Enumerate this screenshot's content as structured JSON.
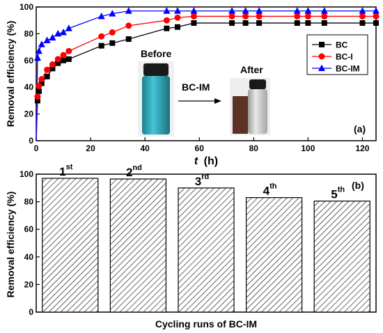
{
  "chart_data": [
    {
      "type": "line",
      "panel_label": "(a)",
      "xlabel": "t",
      "xlabel_unit": "(h)",
      "ylabel": "Removal efficiency (%)",
      "xlim": [
        0,
        125
      ],
      "ylim": [
        0,
        100
      ],
      "xticks": [
        0,
        20,
        40,
        60,
        80,
        100,
        120
      ],
      "yticks": [
        0,
        20,
        40,
        60,
        80,
        100
      ],
      "legend_position": "right",
      "series": [
        {
          "name": "BC",
          "color": "#000000",
          "marker": "square",
          "x": [
            0,
            0.5,
            1,
            2,
            4,
            6,
            8,
            10,
            12,
            24,
            28,
            34,
            48,
            52,
            58,
            72,
            77,
            82,
            96,
            100,
            106,
            120,
            125
          ],
          "y": [
            0,
            30,
            37,
            43,
            48,
            54,
            58,
            60,
            61,
            71,
            73,
            76,
            84,
            85,
            88,
            88,
            88,
            88,
            88,
            88,
            88,
            88,
            88
          ]
        },
        {
          "name": "BC-I",
          "color": "#ff0000",
          "marker": "circle",
          "x": [
            0,
            0.5,
            1,
            2,
            4,
            6,
            8,
            10,
            12,
            24,
            28,
            34,
            48,
            52,
            58,
            72,
            77,
            82,
            96,
            100,
            106,
            120,
            125
          ],
          "y": [
            0,
            33,
            41,
            46,
            53,
            57,
            61,
            64,
            67,
            78,
            81,
            86,
            90,
            92,
            93,
            93,
            93,
            93,
            93,
            93,
            93,
            93,
            93
          ]
        },
        {
          "name": "BC-IM",
          "color": "#0000ff",
          "marker": "triangle",
          "x": [
            0,
            0.5,
            1,
            2,
            4,
            6,
            8,
            10,
            12,
            24,
            28,
            34,
            48,
            52,
            58,
            72,
            77,
            82,
            96,
            100,
            106,
            120,
            125
          ],
          "y": [
            0,
            62,
            67,
            72,
            75,
            77,
            80,
            81,
            84,
            93,
            95,
            97,
            97,
            97,
            97,
            97,
            97,
            97,
            97,
            97,
            97,
            97,
            97
          ]
        }
      ],
      "inset": {
        "before_label": "Before",
        "after_label": "After",
        "arrow_label": "BC-IM"
      }
    },
    {
      "type": "bar",
      "panel_label": "(b)",
      "xlabel": "Cycling runs of BC-IM",
      "ylabel": "Removal efficiency (%)",
      "ylim": [
        0,
        100
      ],
      "yticks": [
        0,
        20,
        40,
        60,
        80,
        100
      ],
      "categories": [
        {
          "base": "1",
          "sup": "st"
        },
        {
          "base": "2",
          "sup": "nd"
        },
        {
          "base": "3",
          "sup": "rd"
        },
        {
          "base": "4",
          "sup": "th"
        },
        {
          "base": "5",
          "sup": "th"
        }
      ],
      "values": [
        97,
        96.5,
        90,
        83,
        80.5
      ]
    }
  ]
}
